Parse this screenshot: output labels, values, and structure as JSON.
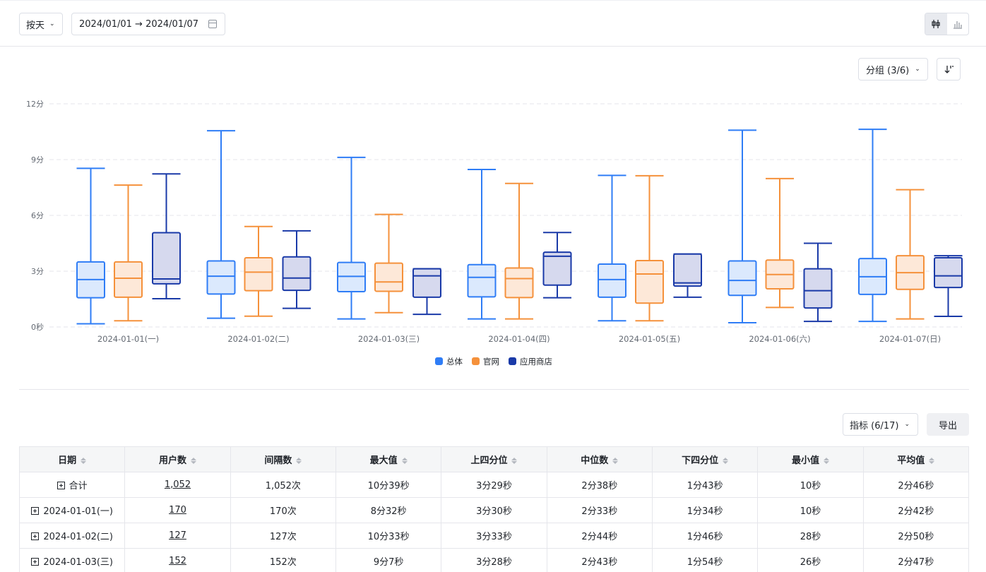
{
  "toolbar": {
    "granularity": "按天",
    "date_range": "2024/01/01 → 2024/01/07",
    "group_label": "分组 (3/6)",
    "metric_label": "指标 (6/17)",
    "export_label": "导出"
  },
  "chart_data": {
    "type": "boxplot",
    "categories": [
      "2024-01-01(一)",
      "2024-01-02(二)",
      "2024-01-03(三)",
      "2024-01-04(四)",
      "2024-01-05(五)",
      "2024-01-06(六)",
      "2024-01-07(日)"
    ],
    "y_ticks": [
      "0秒",
      "3分",
      "6分",
      "9分",
      "12分"
    ],
    "y_unit": "minutes",
    "ylim": [
      0,
      12
    ],
    "grid": true,
    "legend_position": "bottom",
    "series": [
      {
        "name": "总体",
        "color": "#2f7df6",
        "fill": "#dbe9fd",
        "boxes": [
          {
            "min": 0.17,
            "q1": 1.57,
            "median": 2.55,
            "q3": 3.5,
            "max": 8.53
          },
          {
            "min": 0.47,
            "q1": 1.77,
            "median": 2.73,
            "q3": 3.55,
            "max": 10.55
          },
          {
            "min": 0.43,
            "q1": 1.9,
            "median": 2.72,
            "q3": 3.47,
            "max": 9.12
          },
          {
            "min": 0.43,
            "q1": 1.62,
            "median": 2.67,
            "q3": 3.35,
            "max": 8.47
          },
          {
            "min": 0.33,
            "q1": 1.6,
            "median": 2.55,
            "q3": 3.38,
            "max": 8.15
          },
          {
            "min": 0.23,
            "q1": 1.7,
            "median": 2.5,
            "q3": 3.55,
            "max": 10.58
          },
          {
            "min": 0.3,
            "q1": 1.75,
            "median": 2.7,
            "q3": 3.68,
            "max": 10.63
          }
        ]
      },
      {
        "name": "官网",
        "color": "#f5913b",
        "fill": "#fde8d8",
        "boxes": [
          {
            "min": 0.33,
            "q1": 1.6,
            "median": 2.62,
            "q3": 3.5,
            "max": 7.63
          },
          {
            "min": 0.58,
            "q1": 1.95,
            "median": 2.95,
            "q3": 3.72,
            "max": 5.4
          },
          {
            "min": 0.77,
            "q1": 1.92,
            "median": 2.42,
            "q3": 3.43,
            "max": 6.05
          },
          {
            "min": 0.43,
            "q1": 1.58,
            "median": 2.6,
            "q3": 3.17,
            "max": 7.72
          },
          {
            "min": 0.33,
            "q1": 1.28,
            "median": 2.85,
            "q3": 3.57,
            "max": 8.13
          },
          {
            "min": 1.05,
            "q1": 2.05,
            "median": 2.82,
            "q3": 3.6,
            "max": 7.98
          },
          {
            "min": 0.43,
            "q1": 2.02,
            "median": 2.92,
            "q3": 3.83,
            "max": 7.38
          }
        ]
      },
      {
        "name": "应用商店",
        "color": "#1a3aa8",
        "fill": "#d6d9ee",
        "boxes": [
          {
            "min": 1.52,
            "q1": 2.32,
            "median": 2.58,
            "q3": 5.07,
            "max": 8.23
          },
          {
            "min": 1.0,
            "q1": 1.97,
            "median": 2.63,
            "q3": 3.77,
            "max": 5.17
          },
          {
            "min": 0.68,
            "q1": 1.6,
            "median": 2.75,
            "q3": 3.13,
            "max": 3.13
          },
          {
            "min": 1.57,
            "q1": 2.25,
            "median": 3.8,
            "q3": 4.02,
            "max": 5.08
          },
          {
            "min": 1.6,
            "q1": 2.2,
            "median": 2.37,
            "q3": 3.92,
            "max": 3.92
          },
          {
            "min": 0.3,
            "q1": 1.02,
            "median": 1.95,
            "q3": 3.13,
            "max": 4.5
          },
          {
            "min": 0.57,
            "q1": 2.12,
            "median": 2.75,
            "q3": 3.72,
            "max": 3.83
          }
        ]
      }
    ]
  },
  "table": {
    "headers": [
      "日期",
      "用户数",
      "间隔数",
      "最大值",
      "上四分位",
      "中位数",
      "下四分位",
      "最小值",
      "平均值"
    ],
    "rows": [
      [
        "合计",
        "1,052",
        "1,052次",
        "10分39秒",
        "3分29秒",
        "2分38秒",
        "1分43秒",
        "10秒",
        "2分46秒"
      ],
      [
        "2024-01-01(一)",
        "170",
        "170次",
        "8分32秒",
        "3分30秒",
        "2分33秒",
        "1分34秒",
        "10秒",
        "2分42秒"
      ],
      [
        "2024-01-02(二)",
        "127",
        "127次",
        "10分33秒",
        "3分33秒",
        "2分44秒",
        "1分46秒",
        "28秒",
        "2分50秒"
      ],
      [
        "2024-01-03(三)",
        "152",
        "152次",
        "9分7秒",
        "3分28秒",
        "2分43秒",
        "1分54秒",
        "26秒",
        "2分47秒"
      ]
    ]
  }
}
